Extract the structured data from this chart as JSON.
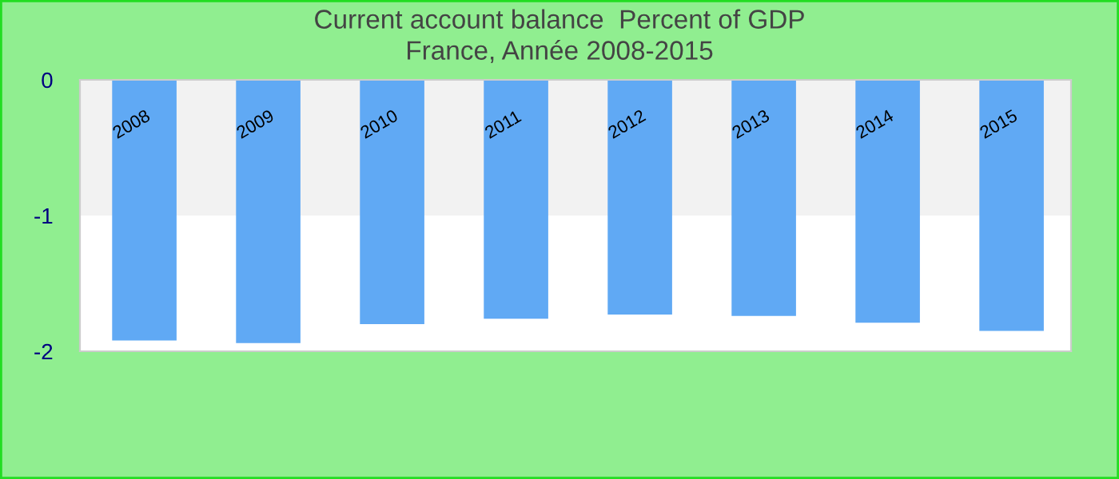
{
  "chart_data": {
    "type": "bar",
    "title": "Current account balance  Percent of GDP",
    "subtitle": "France, Année 2008-2015",
    "categories": [
      "2008",
      "2009",
      "2010",
      "2011",
      "2012",
      "2013",
      "2014",
      "2015"
    ],
    "series": [
      {
        "color": "#60a9f4",
        "values": [
          -1.92,
          -1.94,
          -1.8,
          -1.76,
          -1.73,
          -1.74,
          -1.79,
          -1.85
        ]
      }
    ],
    "ylim": [
      -2,
      0
    ],
    "yticks": [
      -2,
      -1,
      0
    ],
    "bands": [
      {
        "axis": "y",
        "from": -1,
        "to": 0,
        "color": "#f2f2f2"
      }
    ],
    "grid": false,
    "legend": false
  }
}
